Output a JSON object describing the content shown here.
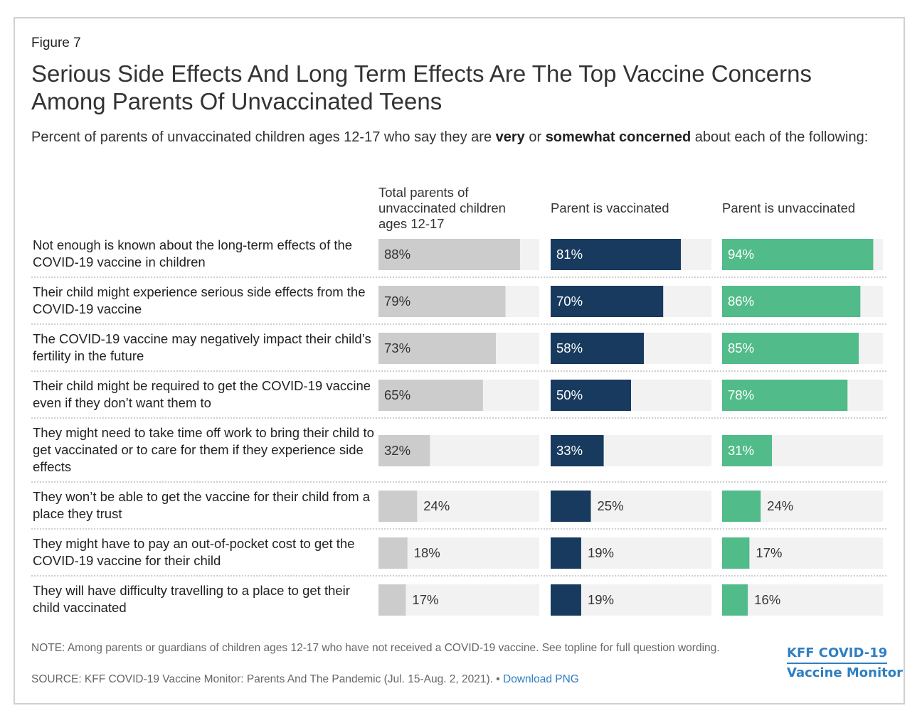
{
  "figure_label": "Figure 7",
  "title": "Serious Side Effects And Long Term Effects Are The Top Vaccine Concerns Among Parents Of Unvaccinated Teens",
  "subtitle": {
    "prefix": "Percent of parents of unvaccinated children ages 12-17 who say they are ",
    "bold1": "very",
    "mid": " or ",
    "bold2": "somewhat concerned",
    "suffix": " about each of the following:"
  },
  "note": "NOTE: Among parents or guardians of children ages 12-17 who have not received a COVID-19 vaccine. See topline for full question wording.",
  "source": {
    "text": "SOURCE: KFF COVID-19 Vaccine Monitor: Parents And The Pandemic (Jul. 15-Aug. 2, 2021). • ",
    "link": "Download PNG"
  },
  "brand": {
    "line1": "KFF COVID-19",
    "line2": "Vaccine Monitor"
  },
  "colors": {
    "total": "#cccccc",
    "vaccinated": "#183a5e",
    "unvaccinated": "#52bb8a",
    "track": "#f2f2f2"
  },
  "chart_data": {
    "type": "bar",
    "orientation": "horizontal",
    "grouping": "small-multiples",
    "xlim": [
      0,
      100
    ],
    "unit": "%",
    "categories": [
      "Not enough is known about the long-term effects of the COVID-19 vaccine in children",
      "Their child might experience serious side effects from the COVID-19 vaccine",
      "The COVID-19 vaccine may negatively impact their child’s fertility in the future",
      "Their child might be required to get the COVID-19 vaccine even if they don’t want them to",
      "They might need to take time off work to bring their child to get vaccinated or to care for them if they experience side effects",
      "They won’t be able to get the vaccine for their child from a place they trust",
      "They might have to pay an out-of-pocket cost to get the COVID-19 vaccine for their child",
      "They will have difficulty travelling to a place to get their child vaccinated"
    ],
    "series": [
      {
        "name": "Total parents of unvaccinated children ages 12-17",
        "color_key": "total",
        "values": [
          88,
          79,
          73,
          65,
          32,
          24,
          18,
          17
        ]
      },
      {
        "name": "Parent is vaccinated",
        "color_key": "vaccinated",
        "values": [
          81,
          70,
          58,
          50,
          33,
          25,
          19,
          19
        ]
      },
      {
        "name": "Parent is unvaccinated",
        "color_key": "unvaccinated",
        "values": [
          94,
          86,
          85,
          78,
          31,
          24,
          17,
          16
        ]
      }
    ]
  }
}
